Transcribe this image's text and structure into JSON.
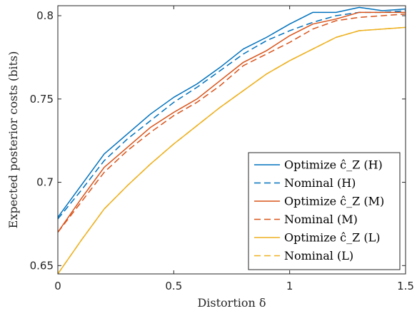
{
  "chart_data": {
    "type": "line",
    "xlabel": "Distortion δ",
    "ylabel": "Expected posterior costs (bits)",
    "xlim": [
      0,
      1.5
    ],
    "ylim": [
      0.645,
      0.806
    ],
    "xticks": [
      0,
      0.5,
      1,
      1.5
    ],
    "xtick_labels": [
      "0",
      "0.5",
      "1",
      "1.5"
    ],
    "yticks": [
      0.65,
      0.7,
      0.75,
      0.8
    ],
    "ytick_labels": [
      "0.65",
      "0.7",
      "0.75",
      "0.8"
    ],
    "grid": false,
    "legend_position": "bottom-right",
    "series": [
      {
        "name": "Optimize ĉ_Z (H)",
        "color": "#0072BD",
        "dash": "solid",
        "x": [
          0,
          0.1,
          0.2,
          0.3,
          0.4,
          0.5,
          0.6,
          0.7,
          0.8,
          0.9,
          1.0,
          1.1,
          1.2,
          1.3,
          1.4,
          1.5
        ],
        "y": [
          0.679,
          0.698,
          0.717,
          0.729,
          0.741,
          0.751,
          0.759,
          0.769,
          0.78,
          0.787,
          0.795,
          0.802,
          0.802,
          0.805,
          0.803,
          0.804
        ]
      },
      {
        "name": "Nominal (H)",
        "color": "#0072BD",
        "dash": "dashed",
        "x": [
          0,
          0.1,
          0.2,
          0.3,
          0.4,
          0.5,
          0.6,
          0.7,
          0.8,
          0.9,
          1.0,
          1.1,
          1.2,
          1.3,
          1.4,
          1.5
        ],
        "y": [
          0.678,
          0.695,
          0.713,
          0.726,
          0.737,
          0.748,
          0.757,
          0.767,
          0.777,
          0.785,
          0.791,
          0.796,
          0.8,
          0.802,
          0.802,
          0.803
        ]
      },
      {
        "name": "Optimize ĉ_Z (M)",
        "color": "#D95319",
        "dash": "solid",
        "x": [
          0,
          0.1,
          0.2,
          0.3,
          0.4,
          0.5,
          0.6,
          0.7,
          0.8,
          0.9,
          1.0,
          1.1,
          1.2,
          1.3,
          1.4,
          1.5
        ],
        "y": [
          0.67,
          0.69,
          0.709,
          0.721,
          0.733,
          0.742,
          0.75,
          0.761,
          0.772,
          0.779,
          0.788,
          0.795,
          0.798,
          0.802,
          0.802,
          0.802
        ]
      },
      {
        "name": "Nominal (M)",
        "color": "#D95319",
        "dash": "dashed",
        "x": [
          0,
          0.1,
          0.2,
          0.3,
          0.4,
          0.5,
          0.6,
          0.7,
          0.8,
          0.9,
          1.0,
          1.1,
          1.2,
          1.3,
          1.4,
          1.5
        ],
        "y": [
          0.67,
          0.688,
          0.706,
          0.719,
          0.73,
          0.74,
          0.748,
          0.758,
          0.77,
          0.777,
          0.784,
          0.792,
          0.797,
          0.799,
          0.8,
          0.801
        ]
      },
      {
        "name": "Optimize ĉ_Z (L)",
        "color": "#EDB120",
        "dash": "solid",
        "x": [
          0,
          0.1,
          0.2,
          0.3,
          0.4,
          0.5,
          0.6,
          0.7,
          0.8,
          0.9,
          1.0,
          1.1,
          1.2,
          1.3,
          1.4,
          1.5
        ],
        "y": [
          0.645,
          0.665,
          0.684,
          0.698,
          0.711,
          0.723,
          0.734,
          0.745,
          0.755,
          0.765,
          0.773,
          0.78,
          0.787,
          0.791,
          0.792,
          0.793
        ]
      },
      {
        "name": "Nominal (L)",
        "color": "#EDB120",
        "dash": "dashed",
        "x": [
          0,
          0.1,
          0.2,
          0.3,
          0.4,
          0.5,
          0.6,
          0.7,
          0.8,
          0.9,
          1.0,
          1.1,
          1.2,
          1.3,
          1.4,
          1.5
        ],
        "y": [
          0.645,
          0.665,
          0.684,
          0.698,
          0.711,
          0.723,
          0.734,
          0.745,
          0.755,
          0.765,
          0.773,
          0.78,
          0.787,
          0.791,
          0.792,
          0.793
        ]
      }
    ]
  }
}
